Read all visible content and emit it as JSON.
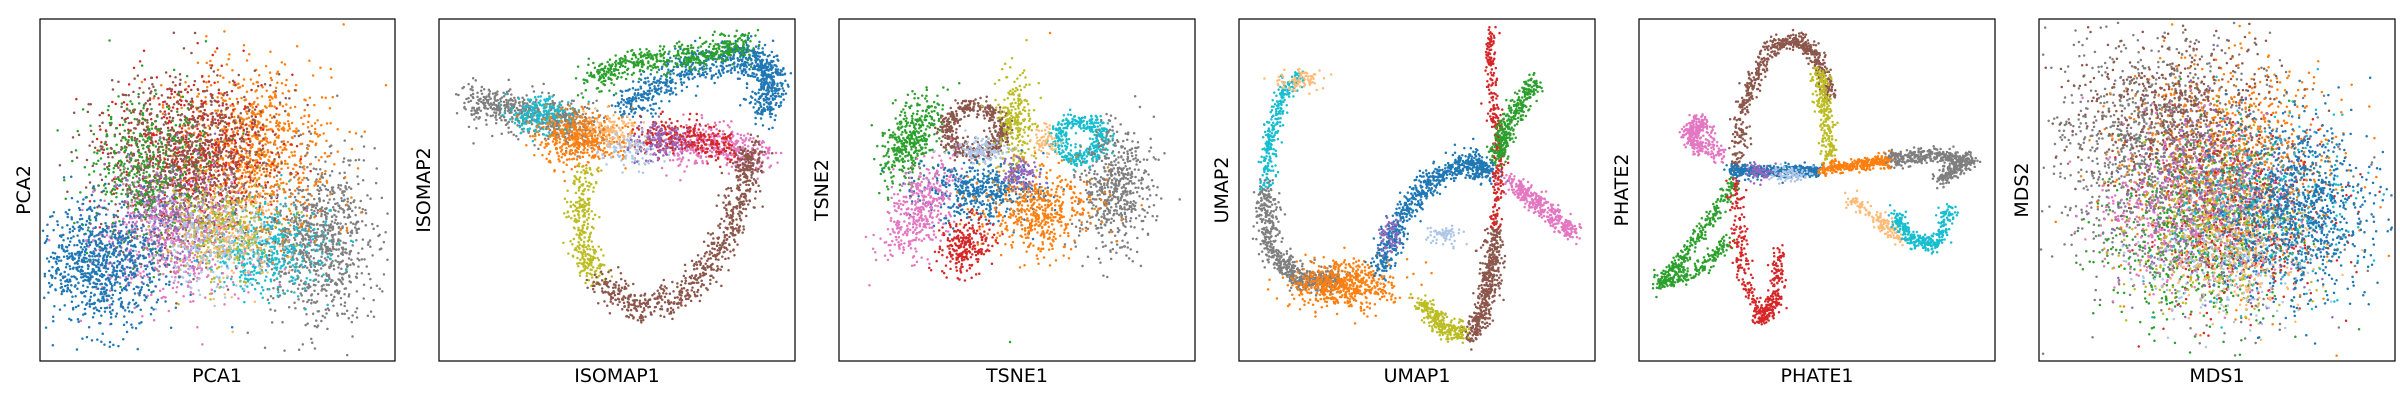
{
  "chart_data": [
    {
      "type": "scatter",
      "xlabel": "PCA1",
      "ylabel": "PCA2",
      "ticks": "none",
      "grid": false,
      "legend": "none"
    },
    {
      "type": "scatter",
      "xlabel": "ISOMAP1",
      "ylabel": "ISOMAP2",
      "ticks": "none",
      "grid": false,
      "legend": "none"
    },
    {
      "type": "scatter",
      "xlabel": "TSNE1",
      "ylabel": "TSNE2",
      "ticks": "none",
      "grid": false,
      "legend": "none"
    },
    {
      "type": "scatter",
      "xlabel": "UMAP1",
      "ylabel": "UMAP2",
      "ticks": "none",
      "grid": false,
      "legend": "none"
    },
    {
      "type": "scatter",
      "xlabel": "PHATE1",
      "ylabel": "PHATE2",
      "ticks": "none",
      "grid": false,
      "legend": "none"
    },
    {
      "type": "scatter",
      "xlabel": "MDS1",
      "ylabel": "MDS2",
      "ticks": "none",
      "grid": false,
      "legend": "none"
    }
  ],
  "colors": {
    "blue": "#1f77b4",
    "orange": "#ff7f0e",
    "green": "#2ca02c",
    "red": "#d62728",
    "purple": "#9467bd",
    "brown": "#8c564b",
    "pink": "#e377c2",
    "gray": "#7f7f7f",
    "olive": "#bcbd22",
    "cyan": "#17becf",
    "light-blue": "#aec7e8",
    "light-orange": "#ffbb78"
  }
}
